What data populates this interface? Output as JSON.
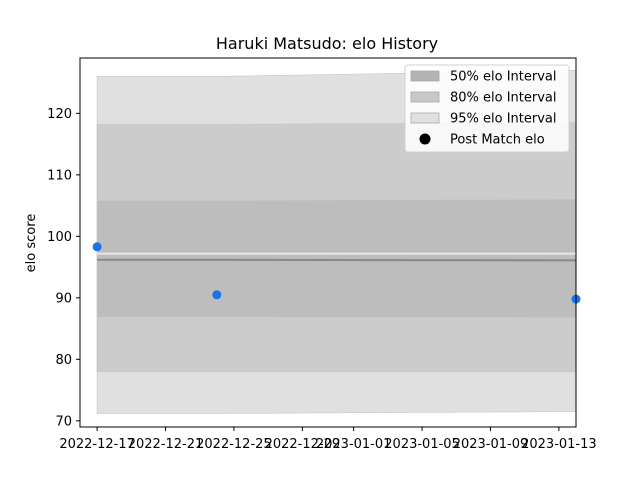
{
  "chart_data": {
    "type": "area",
    "title": "Haruki Matsudo: elo History",
    "ylabel": "elo score",
    "xlabel": "",
    "xlim": [
      "2022-12-16",
      "2023-01-14"
    ],
    "ylim": [
      69,
      129
    ],
    "grid": false,
    "legend_placement": "top-right",
    "x_ticks": [
      "2022-12-17",
      "2022-12-21",
      "2022-12-25",
      "2022-12-29",
      "2023-01-01",
      "2023-01-05",
      "2023-01-09",
      "2023-01-13"
    ],
    "y_ticks": [
      70,
      80,
      90,
      100,
      110,
      120
    ],
    "bands": [
      {
        "name": "95% elo Interval",
        "color": "#e0e0e0",
        "upper": [
          {
            "x": "2022-12-17",
            "y": 126
          },
          {
            "x": "2022-12-24",
            "y": 126
          },
          {
            "x": "2023-01-14",
            "y": 127
          }
        ],
        "lower": [
          {
            "x": "2022-12-17",
            "y": 71.2
          },
          {
            "x": "2022-12-24",
            "y": 71.2
          },
          {
            "x": "2023-01-14",
            "y": 71.5
          }
        ]
      },
      {
        "name": "80% elo Interval",
        "color": "#cccccc",
        "upper": [
          {
            "x": "2022-12-17",
            "y": 118.2
          },
          {
            "x": "2022-12-24",
            "y": 118.2
          },
          {
            "x": "2023-01-14",
            "y": 118.5
          }
        ],
        "lower": [
          {
            "x": "2022-12-17",
            "y": 78
          },
          {
            "x": "2022-12-24",
            "y": 78
          },
          {
            "x": "2023-01-14",
            "y": 78
          }
        ]
      },
      {
        "name": "50% elo Interval",
        "color": "#bdbdbd",
        "upper": [
          {
            "x": "2022-12-17",
            "y": 105.8
          },
          {
            "x": "2022-12-24",
            "y": 105.8
          },
          {
            "x": "2023-01-14",
            "y": 106
          }
        ],
        "lower": [
          {
            "x": "2022-12-17",
            "y": 86.9
          },
          {
            "x": "2022-12-24",
            "y": 86.9
          },
          {
            "x": "2023-01-14",
            "y": 86.8
          }
        ]
      }
    ],
    "mean_lines": [
      {
        "color": "#e8e8e8",
        "points": [
          {
            "x": "2022-12-17",
            "y": 97.2
          },
          {
            "x": "2023-01-14",
            "y": 97.2
          }
        ]
      },
      {
        "color": "#888888",
        "points": [
          {
            "x": "2022-12-17",
            "y": 96.2
          },
          {
            "x": "2023-01-14",
            "y": 96.1
          }
        ]
      }
    ],
    "series": [
      {
        "name": "Post Match elo",
        "type": "scatter",
        "color": "#1a73e8",
        "points": [
          {
            "x": "2022-12-17",
            "y": 98.3
          },
          {
            "x": "2022-12-24",
            "y": 90.5
          },
          {
            "x": "2023-01-14",
            "y": 89.8
          }
        ]
      }
    ],
    "legend": [
      {
        "label": "50% elo Interval",
        "kind": "patch",
        "color": "#b3b3b3"
      },
      {
        "label": "80% elo Interval",
        "kind": "patch",
        "color": "#c8c8c8"
      },
      {
        "label": "95% elo Interval",
        "kind": "patch",
        "color": "#e0e0e0"
      },
      {
        "label": "Post Match elo",
        "kind": "marker",
        "color": "#000000"
      }
    ]
  }
}
